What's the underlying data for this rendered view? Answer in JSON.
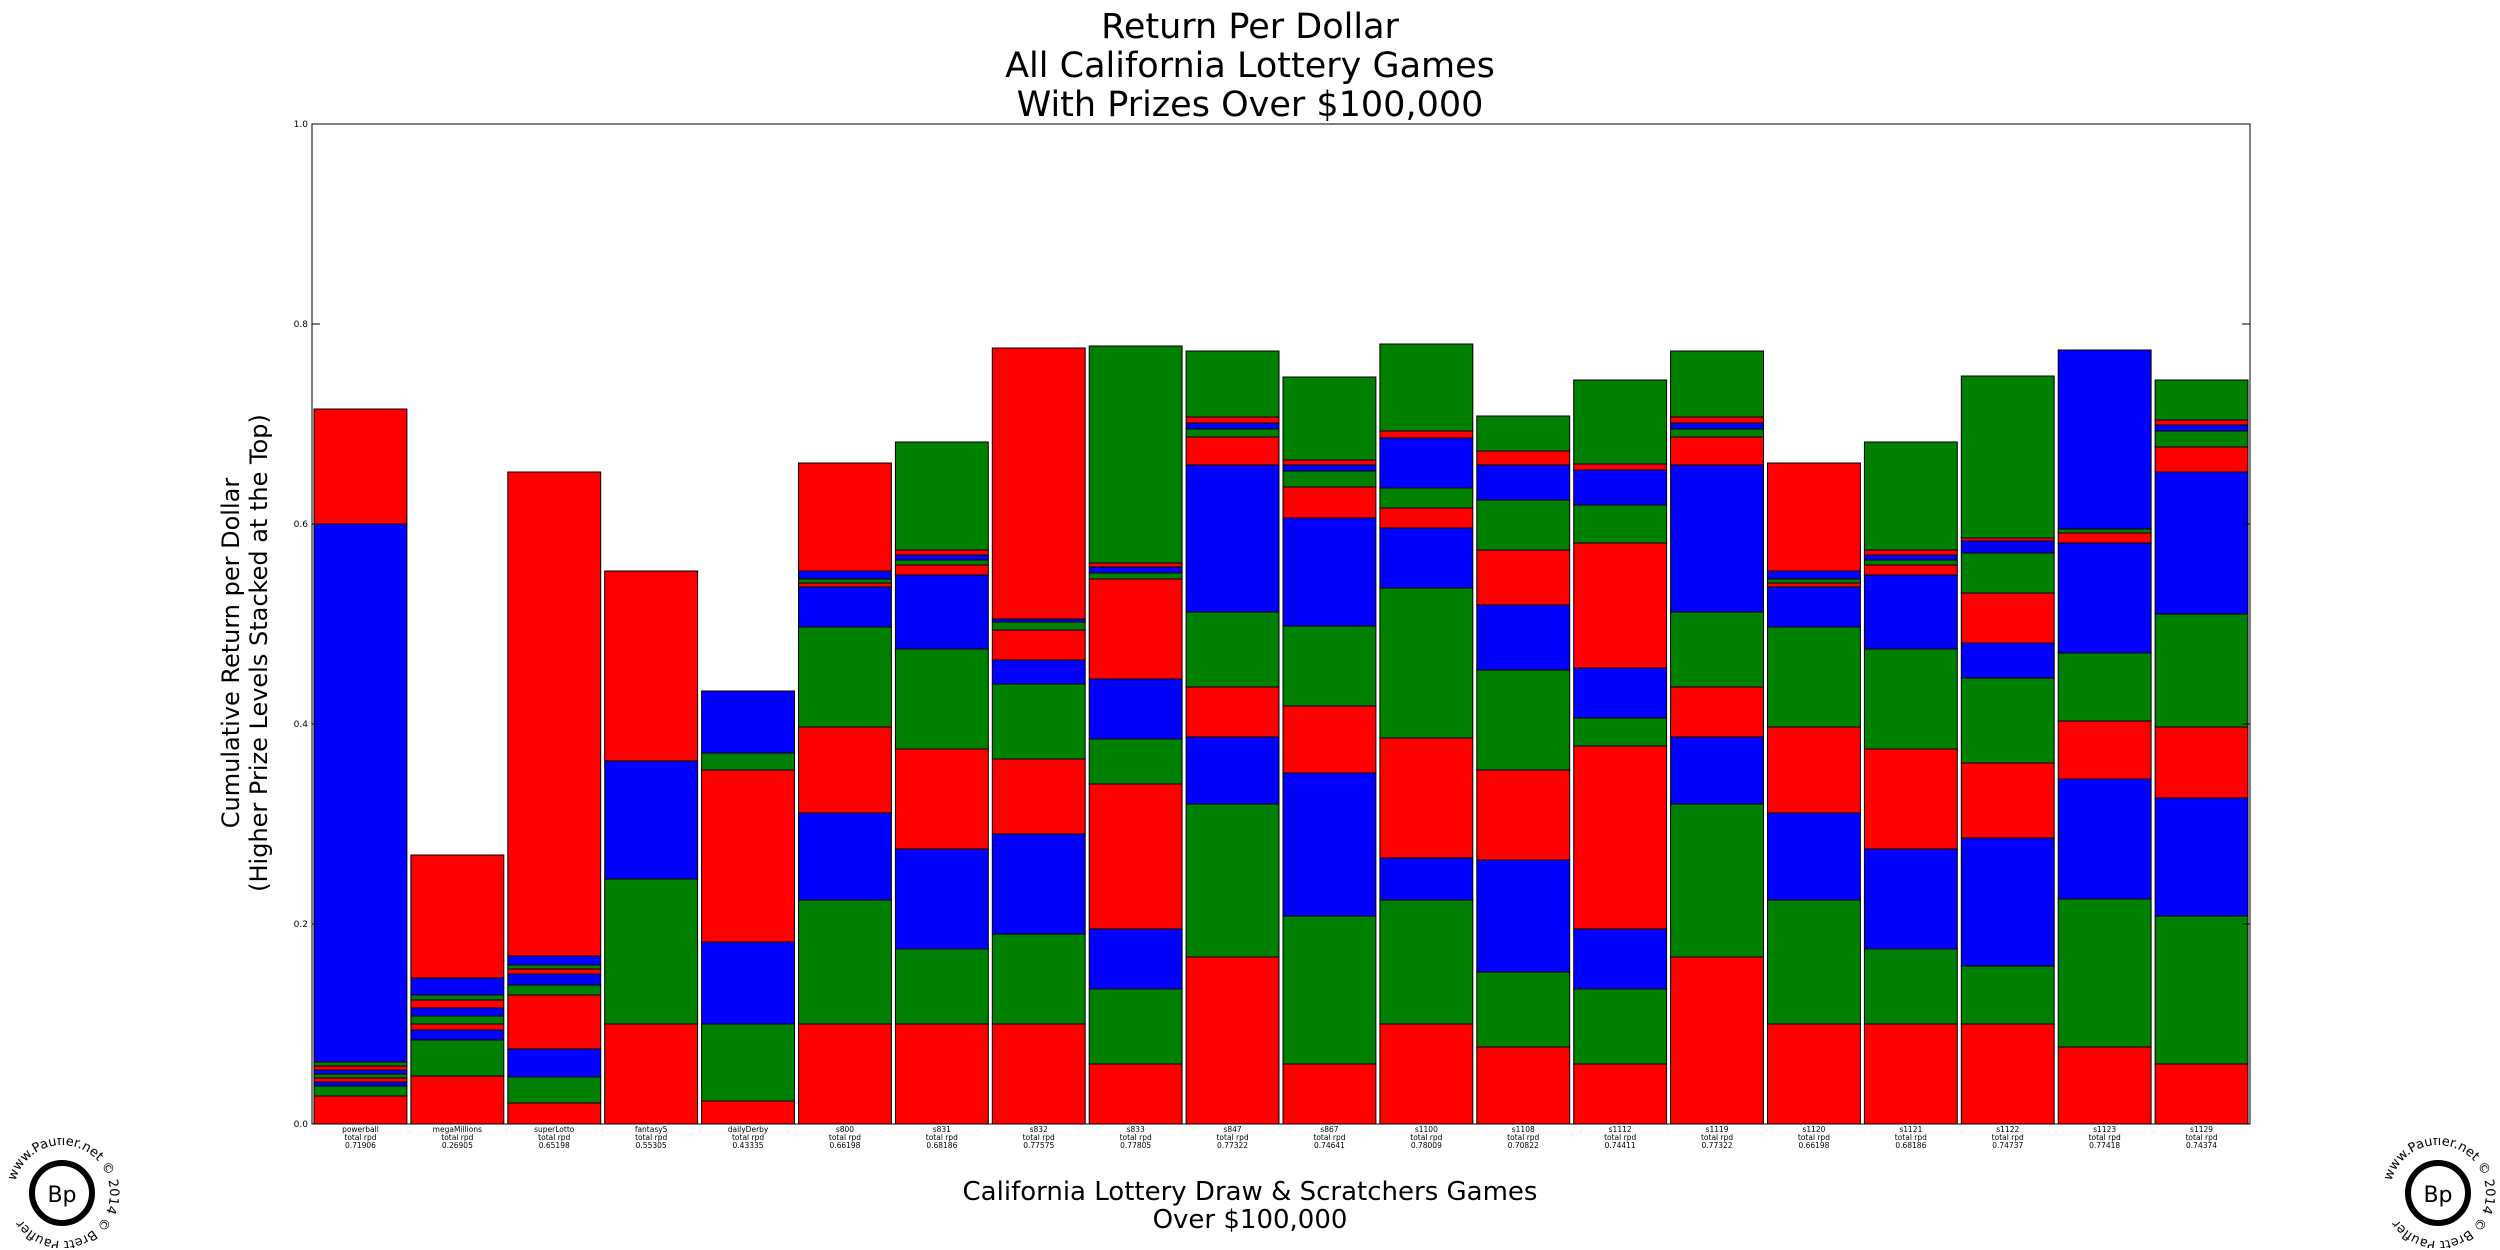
{
  "chart_data": {
    "type": "bar",
    "stacked": true,
    "title": [
      "Return Per Dollar",
      "All California Lottery Games",
      "With Prizes Over $100,000"
    ],
    "xlabel": [
      "California Lottery Draw & Scratchers Games",
      "Over $100,000"
    ],
    "ylabel": [
      "Cumulative Return per Dollar",
      "(Higher Prize Levels Stacked at the Top)"
    ],
    "ylim": [
      0,
      1.0
    ],
    "yticks": [
      "0.0",
      "0.2",
      "0.4",
      "0.6",
      "0.8",
      "1.0"
    ],
    "grid": false,
    "stack_colors": [
      "#ff0000",
      "#008000",
      "#0000ff"
    ],
    "games": [
      {
        "name": "powerball",
        "rpd_label": "total rpd",
        "rpd": "0.71906",
        "segments": [
          0.028,
          0.01,
          0.004,
          0.004,
          0.004,
          0.004,
          0.004,
          0.004,
          0.538,
          0.115
        ]
      },
      {
        "name": "megaMillions",
        "rpd_label": "total rpd",
        "rpd": "0.26905",
        "segments": [
          0.048,
          0.036,
          0.01,
          0.006,
          0.008,
          0.008,
          0.008,
          0.005,
          0.017,
          0.123
        ]
      },
      {
        "name": "superLotto",
        "rpd_label": "total rpd",
        "rpd": "0.65198",
        "segments": [
          0.021,
          0.026,
          0.028,
          0.054,
          0.01,
          0.011,
          0.005,
          0.004,
          0.009,
          0.484
        ]
      },
      {
        "name": "fantasy5",
        "rpd_label": "total rpd",
        "rpd": "0.55305",
        "segments": [
          0.1,
          0.145,
          0.118,
          0.19
        ]
      },
      {
        "name": "dailyDerby",
        "rpd_label": "total rpd",
        "rpd": "0.43335",
        "segments": [
          0.023,
          0.077,
          0.082,
          0.172,
          0.017,
          0.062
        ]
      },
      {
        "name": "s800",
        "rpd_label": "total rpd",
        "rpd": "0.66198",
        "segments": [
          0.1,
          0.124,
          0.087,
          0.086,
          0.1,
          0.04,
          0.004,
          0.004,
          0.008,
          0.108
        ]
      },
      {
        "name": "s831",
        "rpd_label": "total rpd",
        "rpd": "0.68186",
        "segments": [
          0.1,
          0.075,
          0.1,
          0.1,
          0.1,
          0.074,
          0.01,
          0.005,
          0.005,
          0.005,
          0.108
        ]
      },
      {
        "name": "s832",
        "rpd_label": "total rpd",
        "rpd": "0.77575",
        "segments": [
          0.1,
          0.09,
          0.1,
          0.075,
          0.075,
          0.024,
          0.03,
          0.008,
          0.003,
          0.271
        ]
      },
      {
        "name": "s833",
        "rpd_label": "total rpd",
        "rpd": "0.77805",
        "segments": [
          0.06,
          0.075,
          0.06,
          0.145,
          0.045,
          0.06,
          0.1,
          0.006,
          0.006,
          0.004,
          0.217
        ]
      },
      {
        "name": "s847",
        "rpd_label": "total rpd",
        "rpd": "0.77322",
        "segments": [
          0.167,
          0.153,
          0.067,
          0.05,
          0.075,
          0.147,
          0.028,
          0.008,
          0.006,
          0.006,
          0.066
        ]
      },
      {
        "name": "s867",
        "rpd_label": "total rpd",
        "rpd": "0.74641",
        "segments": [
          0.06,
          0.148,
          0.143,
          0.067,
          0.08,
          0.108,
          0.031,
          0.016,
          0.006,
          0.005,
          0.083
        ]
      },
      {
        "name": "s1100",
        "rpd_label": "total rpd",
        "rpd": "0.78009",
        "segments": [
          0.1,
          0.124,
          0.042,
          0.12,
          0.15,
          0.06,
          0.02,
          0.02,
          0.05,
          0.007,
          0.087
        ]
      },
      {
        "name": "s1108",
        "rpd_label": "total rpd",
        "rpd": "0.70822",
        "segments": [
          0.077,
          0.075,
          0.112,
          0.09,
          0.1,
          0.065,
          0.055,
          0.05,
          0.035,
          0.014,
          0.035
        ]
      },
      {
        "name": "s1112",
        "rpd_label": "total rpd",
        "rpd": "0.74411",
        "segments": [
          0.06,
          0.075,
          0.06,
          0.183,
          0.028,
          0.05,
          0.125,
          0.038,
          0.035,
          0.006,
          0.084
        ]
      },
      {
        "name": "s1119",
        "rpd_label": "total rpd",
        "rpd": "0.77322",
        "segments": [
          0.167,
          0.153,
          0.067,
          0.05,
          0.075,
          0.147,
          0.028,
          0.008,
          0.006,
          0.006,
          0.066
        ]
      },
      {
        "name": "s1120",
        "rpd_label": "total rpd",
        "rpd": "0.66198",
        "segments": [
          0.1,
          0.124,
          0.087,
          0.086,
          0.1,
          0.04,
          0.004,
          0.004,
          0.008,
          0.108
        ]
      },
      {
        "name": "s1121",
        "rpd_label": "total rpd",
        "rpd": "0.68186",
        "segments": [
          0.1,
          0.075,
          0.1,
          0.1,
          0.1,
          0.074,
          0.01,
          0.005,
          0.005,
          0.005,
          0.108
        ]
      },
      {
        "name": "s1122",
        "rpd_label": "total rpd",
        "rpd": "0.74737",
        "segments": [
          0.1,
          0.058,
          0.128,
          0.075,
          0.085,
          0.035,
          0.05,
          0.04,
          0.012,
          0.003,
          0.162
        ]
      },
      {
        "name": "s1123",
        "rpd_label": "total rpd",
        "rpd": "0.77418",
        "segments": [
          0.077,
          0.148,
          0.12,
          0.058,
          0.068,
          0.11,
          0.01,
          0.004,
          0.179
        ]
      },
      {
        "name": "s1129",
        "rpd_label": "total rpd",
        "rpd": "0.74374",
        "segments": [
          0.06,
          0.148,
          0.118,
          0.071,
          0.113,
          0.142,
          0.025,
          0.016,
          0.006,
          0.005,
          0.04
        ]
      }
    ]
  },
  "logo": {
    "text": "Bp",
    "ring_text": "www.Paufler.net  © 2014 © Brett Paufler"
  }
}
